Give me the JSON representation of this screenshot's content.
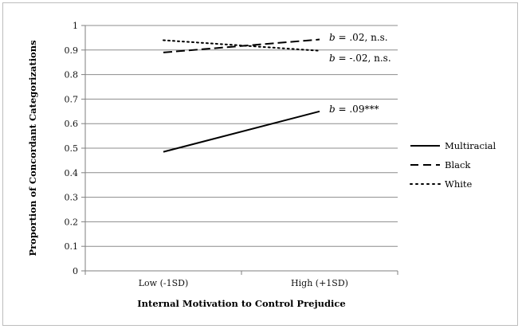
{
  "chart_data": {
    "type": "line",
    "title": "",
    "xlabel": "Internal Motivation to Control Prejudice",
    "ylabel": "Proportion of Concordant Categorizations",
    "categories": [
      "Low (-1SD)",
      "High (+1SD)"
    ],
    "ylim": [
      0,
      1
    ],
    "yticks": [
      "0",
      "0.1",
      "0.2",
      "0.3",
      "0.4",
      "0.5",
      "0.6",
      "0.7",
      "0.8",
      "0.9",
      "1"
    ],
    "grid": true,
    "legend_position": "right",
    "series": [
      {
        "name": "Multiracial",
        "values": [
          0.485,
          0.65
        ],
        "style": "solid",
        "color": "#000000",
        "annotation": {
          "prefix": "b",
          "text": " = .09***"
        }
      },
      {
        "name": "Black",
        "values": [
          0.89,
          0.943
        ],
        "style": "dashed",
        "color": "#000000",
        "annotation": {
          "prefix": "b",
          "text": " = .02, n.s."
        }
      },
      {
        "name": "White",
        "values": [
          0.94,
          0.897
        ],
        "style": "dotted",
        "color": "#000000",
        "annotation": {
          "prefix": "b",
          "text": " = -.02, n.s."
        }
      }
    ]
  }
}
